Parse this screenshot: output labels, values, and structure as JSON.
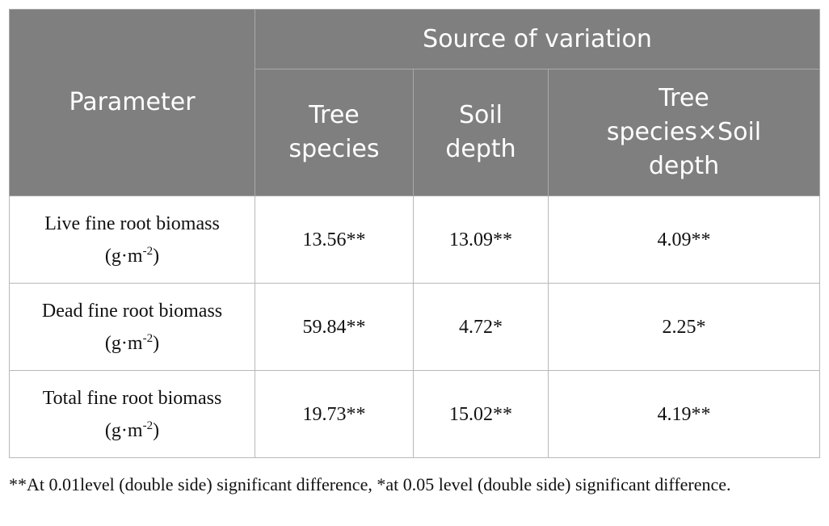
{
  "table": {
    "header": {
      "parameter": "Parameter",
      "group": "Source of variation",
      "columns": [
        "Tree species",
        "Soil depth",
        "Tree species×Soil depth"
      ]
    },
    "rows": [
      [
        {
          "text": "Live fine root biomass (g·m",
          "sup": "-2",
          "tail": ")"
        },
        "13.56**",
        "13.09**",
        "4.09**"
      ],
      [
        {
          "text": "Dead fine root biomass (g·m",
          "sup": "-2",
          "tail": ")"
        },
        "59.84**",
        "4.72*",
        "2.25*"
      ],
      [
        {
          "text": "Total fine root biomass (g·m",
          "sup": "-2",
          "tail": ")"
        },
        "19.73**",
        "15.02**",
        "4.19**"
      ]
    ]
  },
  "footnote": "**At 0.01level (double side) significant difference, *at 0.05 level (double side) significant difference."
}
